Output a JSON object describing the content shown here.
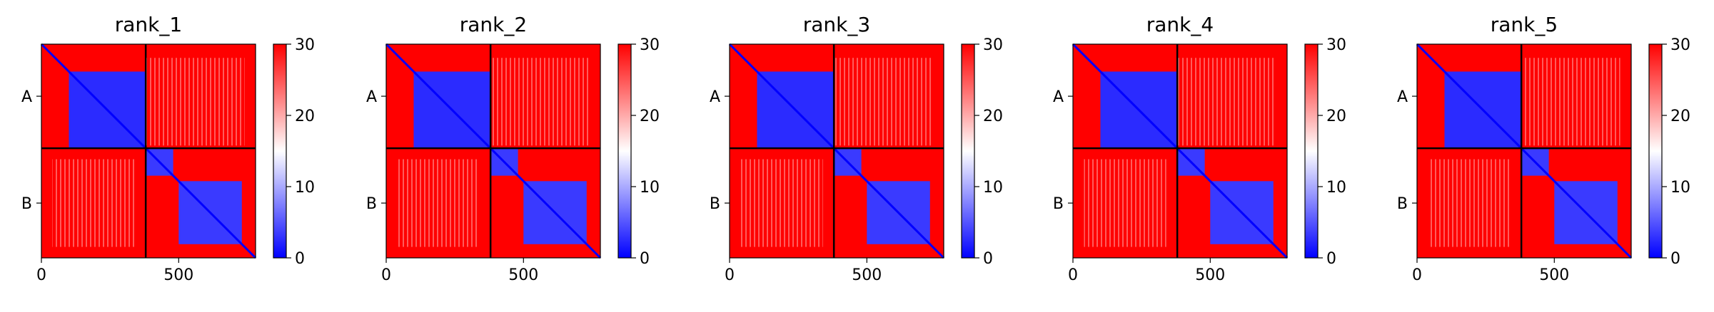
{
  "chart_data": {
    "type": "heatmap",
    "description_kind": "PAE matrices",
    "colormap": {
      "stops": [
        "#0000ff",
        "#ffffff",
        "#ff0000"
      ],
      "range": [
        0,
        30
      ]
    },
    "colorbar_ticks": [
      0,
      10,
      20,
      30
    ],
    "x_ticks": [
      0,
      500
    ],
    "chains": [
      {
        "label": "A",
        "start": 0,
        "end": 380
      },
      {
        "label": "B",
        "start": 380,
        "end": 780
      }
    ],
    "total_length": 780,
    "panels": [
      {
        "title": "rank_1"
      },
      {
        "title": "rank_2"
      },
      {
        "title": "rank_3"
      },
      {
        "title": "rank_4"
      },
      {
        "title": "rank_5"
      }
    ]
  }
}
